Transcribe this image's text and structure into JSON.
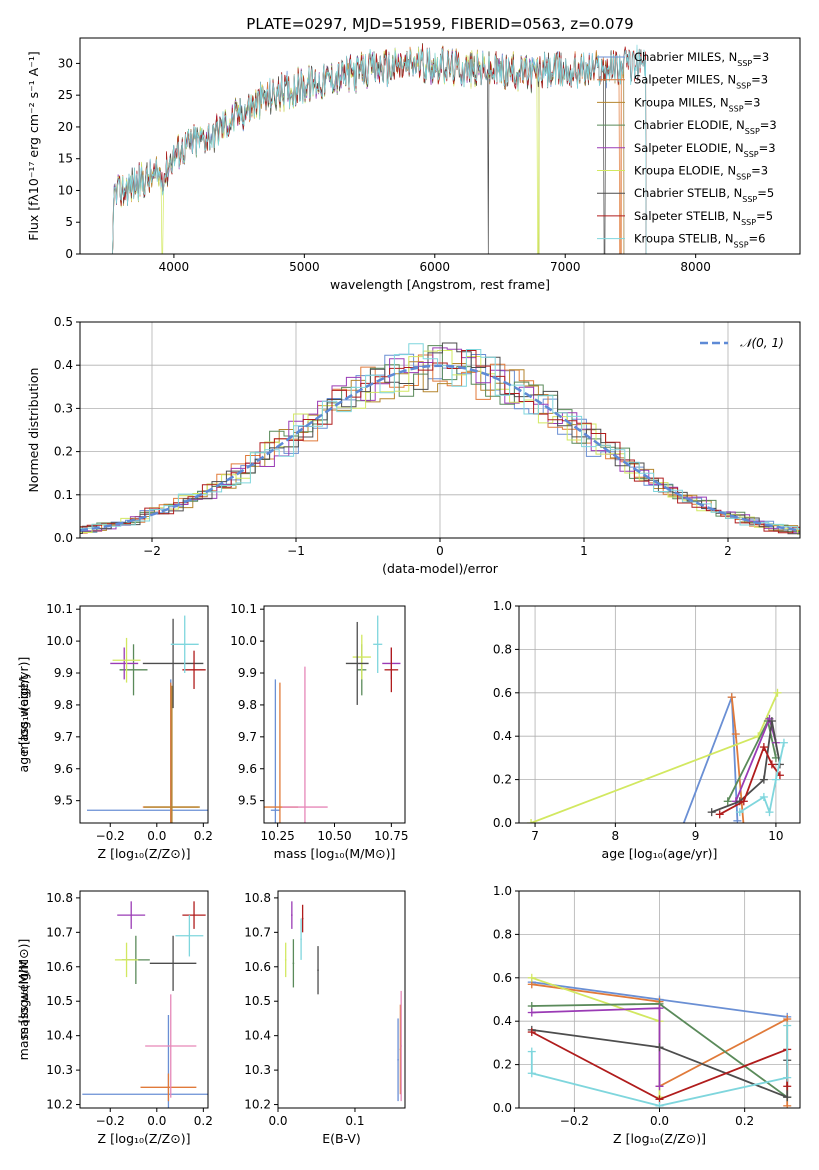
{
  "title": "PLATE=0297, MJD=51959, FIBERID=0563, z=0.079",
  "colors": {
    "chabrier_miles": "#6a8fd4",
    "salpeter_miles": "#e07a3a",
    "kroupa_miles": "#b5862f",
    "chabrier_elodie": "#5a8a5a",
    "salpeter_elodie": "#9a3bb5",
    "kroupa_elodie": "#d2e860",
    "chabrier_stelib": "#4d4d4d",
    "salpeter_stelib": "#b01c1c",
    "kroupa_stelib": "#7fd6dd",
    "pink": "#e687b8",
    "gauss": "#5e8ad6"
  },
  "chart_data": [
    {
      "id": "spectrum",
      "type": "line",
      "xlabel": "wavelength [Angstrom, rest frame]",
      "ylabel": "Flux [fλ10⁻¹⁷ erg cm⁻² s⁻¹ A⁻¹]",
      "xlim": [
        3280,
        8800
      ],
      "ylim": [
        0,
        34
      ],
      "xticks": [
        "4000",
        "5000",
        "6000",
        "7000",
        "8000"
      ],
      "yticks": [
        "0",
        "5",
        "10",
        "15",
        "20",
        "25",
        "30"
      ],
      "xtick_values": [
        4000,
        5000,
        6000,
        7000,
        8000
      ],
      "ytick_values": [
        0,
        5,
        10,
        15,
        20,
        25,
        30
      ],
      "grid": false,
      "legend_position": "right",
      "continuum": [
        [
          3530,
          9
        ],
        [
          3650,
          10.5
        ],
        [
          3800,
          12
        ],
        [
          3930,
          12.5
        ],
        [
          3990,
          15.5
        ],
        [
          4100,
          17
        ],
        [
          4300,
          19
        ],
        [
          4500,
          22
        ],
        [
          4700,
          24.5
        ],
        [
          4900,
          26
        ],
        [
          5100,
          27
        ],
        [
          5300,
          28
        ],
        [
          5500,
          29
        ],
        [
          5700,
          29.5
        ],
        [
          5900,
          30
        ],
        [
          6100,
          29.5
        ],
        [
          6300,
          29
        ],
        [
          6500,
          28.8
        ],
        [
          6700,
          28.5
        ],
        [
          6900,
          28.8
        ],
        [
          7100,
          29
        ],
        [
          7300,
          29.3
        ],
        [
          7600,
          30
        ]
      ],
      "series": [
        {
          "name": "Chabrier MILES, N_SSP=3",
          "color_key": "chabrier_miles",
          "x_range": [
            3530,
            7450
          ],
          "glitches": [],
          "seed": 1
        },
        {
          "name": "Salpeter MILES, N_SSP=3",
          "color_key": "salpeter_miles",
          "x_range": [
            3530,
            7430
          ],
          "glitches": [
            7420
          ],
          "seed": 2
        },
        {
          "name": "Kroupa MILES, N_SSP=3",
          "color_key": "kroupa_miles",
          "x_range": [
            3530,
            7450
          ],
          "glitches": [],
          "seed": 3
        },
        {
          "name": "Chabrier ELODIE, N_SSP=3",
          "color_key": "chabrier_elodie",
          "x_range": [
            3530,
            6800
          ],
          "glitches": [],
          "seed": 4
        },
        {
          "name": "Salpeter ELODIE, N_SSP=3",
          "color_key": "salpeter_elodie",
          "x_range": [
            3530,
            6800
          ],
          "glitches": [],
          "seed": 5
        },
        {
          "name": "Kroupa ELODIE, N_SSP=3",
          "color_key": "kroupa_elodie",
          "x_range": [
            3530,
            6800
          ],
          "glitches": [
            3910,
            6790
          ],
          "seed": 6
        },
        {
          "name": "Chabrier STELIB, N_SSP=5",
          "color_key": "chabrier_stelib",
          "x_range": [
            3530,
            7620
          ],
          "glitches": [
            6410,
            7300
          ],
          "seed": 7
        },
        {
          "name": "Salpeter STELIB, N_SSP=5",
          "color_key": "salpeter_stelib",
          "x_range": [
            3530,
            7620
          ],
          "glitches": [],
          "seed": 8
        },
        {
          "name": "Kroupa STELIB, N_SSP=6",
          "color_key": "kroupa_stelib",
          "x_range": [
            3530,
            7620
          ],
          "glitches": [],
          "seed": 9
        }
      ]
    },
    {
      "id": "residuals",
      "type": "line",
      "xlabel": "(data-model)/error",
      "ylabel": "Normed distribution",
      "xlim": [
        -2.5,
        2.5
      ],
      "ylim": [
        0,
        0.5
      ],
      "xticks": [
        "−2",
        "−1",
        "0",
        "1",
        "2"
      ],
      "yticks": [
        "0.0",
        "0.1",
        "0.2",
        "0.3",
        "0.4",
        "0.5"
      ],
      "xtick_values": [
        -2,
        -1,
        0,
        1,
        2
      ],
      "ytick_values": [
        0,
        0.1,
        0.2,
        0.3,
        0.4,
        0.5
      ],
      "grid": true,
      "legend_position": "top-right",
      "legend_label": "𝒩(0, 1)",
      "bin_width": 0.1,
      "histogram_color_keys": [
        "chabrier_miles",
        "salpeter_miles",
        "kroupa_miles",
        "chabrier_elodie",
        "salpeter_elodie",
        "kroupa_elodie",
        "chabrier_stelib",
        "salpeter_stelib",
        "kroupa_stelib"
      ]
    },
    {
      "id": "age_vs_z",
      "type": "scatter",
      "xlabel": "Z [log₁₀(Z/Z⊙)]",
      "ylabel": "age  [log₁₀(age/yr)]",
      "xlim": [
        -0.33,
        0.22
      ],
      "ylim": [
        9.43,
        10.11
      ],
      "xticks": [
        "−0.2",
        "0.0",
        "0.2"
      ],
      "yticks": [
        "9.5",
        "9.6",
        "9.7",
        "9.8",
        "9.9",
        "10.0",
        "10.1"
      ],
      "xtick_values": [
        -0.2,
        0,
        0.2
      ],
      "ytick_values": [
        9.5,
        9.6,
        9.7,
        9.8,
        9.9,
        10.0,
        10.1
      ],
      "grid": false,
      "points": [
        {
          "color_key": "chabrier_miles",
          "x": 0.06,
          "y": 9.47,
          "xerr": 0.36,
          "yerr": 0.41
        },
        {
          "color_key": "salpeter_miles",
          "x": 0.06,
          "y": 9.48,
          "xerr": 0.12,
          "yerr": 0.39
        },
        {
          "color_key": "kroupa_miles",
          "x": 0.065,
          "y": 9.48,
          "xerr": 0.12,
          "yerr": 0.38
        },
        {
          "color_key": "chabrier_elodie",
          "x": -0.1,
          "y": 9.91,
          "xerr": 0.06,
          "yerr": 0.08
        },
        {
          "color_key": "salpeter_elodie",
          "x": -0.14,
          "y": 9.93,
          "xerr": 0.06,
          "yerr": 0.05
        },
        {
          "color_key": "kroupa_elodie",
          "x": -0.13,
          "y": 9.94,
          "xerr": 0.06,
          "yerr": 0.07
        },
        {
          "color_key": "chabrier_stelib",
          "x": 0.07,
          "y": 9.93,
          "xerr": 0.13,
          "yerr": 0.14
        },
        {
          "color_key": "salpeter_stelib",
          "x": 0.16,
          "y": 9.91,
          "xerr": 0.05,
          "yerr": 0.06
        },
        {
          "color_key": "kroupa_stelib",
          "x": 0.12,
          "y": 9.99,
          "xerr": 0.06,
          "yerr": 0.09
        }
      ]
    },
    {
      "id": "age_vs_mass",
      "type": "scatter",
      "xlabel": "mass [log₁₀(M/M⊙)]",
      "ylabel": "",
      "xlim": [
        10.19,
        10.81
      ],
      "ylim": [
        9.43,
        10.11
      ],
      "xticks": [
        "10.25",
        "10.50",
        "10.75"
      ],
      "yticks": [
        "9.5",
        "9.6",
        "9.7",
        "9.8",
        "9.9",
        "10.0",
        "10.1"
      ],
      "xtick_values": [
        10.25,
        10.5,
        10.75
      ],
      "ytick_values": [
        9.5,
        9.6,
        9.7,
        9.8,
        9.9,
        10.0,
        10.1
      ],
      "grid": false,
      "points": [
        {
          "color_key": "chabrier_miles",
          "x": 10.24,
          "y": 9.47,
          "xerr": 0.02,
          "yerr": 0.41
        },
        {
          "color_key": "salpeter_miles",
          "x": 10.26,
          "y": 9.48,
          "xerr": 0.08,
          "yerr": 0.39
        },
        {
          "color_key": "pink",
          "x": 10.37,
          "y": 9.48,
          "xerr": 0.1,
          "yerr": 0.44
        },
        {
          "color_key": "chabrier_elodie",
          "x": 10.62,
          "y": 9.91,
          "xerr": 0.02,
          "yerr": 0.08
        },
        {
          "color_key": "salpeter_elodie",
          "x": 10.75,
          "y": 9.93,
          "xerr": 0.04,
          "yerr": 0.05
        },
        {
          "color_key": "kroupa_elodie",
          "x": 10.62,
          "y": 9.95,
          "xerr": 0.04,
          "yerr": 0.07
        },
        {
          "color_key": "chabrier_stelib",
          "x": 10.6,
          "y": 9.93,
          "xerr": 0.05,
          "yerr": 0.13
        },
        {
          "color_key": "salpeter_stelib",
          "x": 10.75,
          "y": 9.91,
          "xerr": 0.03,
          "yerr": 0.07
        },
        {
          "color_key": "kroupa_stelib",
          "x": 10.69,
          "y": 9.99,
          "xerr": 0.02,
          "yerr": 0.09
        }
      ]
    },
    {
      "id": "mass_weight_vs_age",
      "type": "line",
      "xlabel": "age  [log₁₀(age/yr)]",
      "ylabel": "mass weight",
      "xlim": [
        6.8,
        10.3
      ],
      "ylim": [
        0,
        1
      ],
      "xticks": [
        "7",
        "8",
        "9",
        "10"
      ],
      "yticks": [
        "0.0",
        "0.2",
        "0.4",
        "0.6",
        "0.8",
        "1.0"
      ],
      "xtick_values": [
        7,
        8,
        9,
        10
      ],
      "ytick_values": [
        0,
        0.2,
        0.4,
        0.6,
        0.8,
        1.0
      ],
      "grid": true,
      "series": [
        {
          "color_key": "chabrier_miles",
          "x": [
            8.8,
            9.45,
            9.52
          ],
          "y": [
            -0.05,
            0.58,
            0.01
          ]
        },
        {
          "color_key": "salpeter_miles",
          "x": [
            9.45,
            9.5,
            9.6
          ],
          "y": [
            0.58,
            0.41,
            -0.02
          ]
        },
        {
          "color_key": "kroupa_elodie",
          "x": [
            6.95,
            9.78,
            10.02
          ],
          "y": [
            0.0,
            0.4,
            0.6
          ]
        },
        {
          "color_key": "chabrier_elodie",
          "x": [
            9.4,
            9.9,
            10.0
          ],
          "y": [
            0.1,
            0.47,
            0.3
          ]
        },
        {
          "color_key": "salpeter_elodie",
          "x": [
            9.5,
            9.92,
            10.0
          ],
          "y": [
            0.1,
            0.48,
            0.37
          ]
        },
        {
          "color_key": "chabrier_stelib",
          "x": [
            9.2,
            9.55,
            9.85,
            9.95,
            10.05
          ],
          "y": [
            0.05,
            0.1,
            0.2,
            0.47,
            0.27
          ]
        },
        {
          "color_key": "salpeter_stelib",
          "x": [
            9.3,
            9.6,
            9.85,
            9.95,
            10.05
          ],
          "y": [
            0.04,
            0.1,
            0.35,
            0.27,
            0.22
          ]
        },
        {
          "color_key": "kroupa_stelib",
          "x": [
            9.55,
            9.85,
            9.92,
            10.0,
            10.1
          ],
          "y": [
            0.05,
            0.12,
            0.05,
            0.2,
            0.37
          ]
        }
      ]
    },
    {
      "id": "mass_vs_z",
      "type": "scatter",
      "xlabel": "Z [log₁₀(Z/Z⊙)]",
      "ylabel": "mass [log₁₀(M/M⊙)]",
      "xlim": [
        -0.33,
        0.22
      ],
      "ylim": [
        10.19,
        10.82
      ],
      "xticks": [
        "−0.2",
        "0.0",
        "0.2"
      ],
      "yticks": [
        "10.2",
        "10.3",
        "10.4",
        "10.5",
        "10.6",
        "10.7",
        "10.8"
      ],
      "xtick_values": [
        -0.2,
        0,
        0.2
      ],
      "ytick_values": [
        10.2,
        10.3,
        10.4,
        10.5,
        10.6,
        10.7,
        10.8
      ],
      "grid": false,
      "points": [
        {
          "color_key": "chabrier_miles",
          "x": 0.05,
          "y": 10.23,
          "xerr": 0.37,
          "yerr": 0.23
        },
        {
          "color_key": "salpeter_miles",
          "x": 0.05,
          "y": 10.25,
          "xerr": 0.12,
          "yerr": 0.04
        },
        {
          "color_key": "pink",
          "x": 0.06,
          "y": 10.37,
          "xerr": 0.11,
          "yerr": 0.15
        },
        {
          "color_key": "chabrier_elodie",
          "x": -0.09,
          "y": 10.62,
          "xerr": 0.06,
          "yerr": 0.07
        },
        {
          "color_key": "kroupa_elodie",
          "x": -0.13,
          "y": 10.62,
          "xerr": 0.05,
          "yerr": 0.05
        },
        {
          "color_key": "salpeter_elodie",
          "x": -0.11,
          "y": 10.75,
          "xerr": 0.06,
          "yerr": 0.04
        },
        {
          "color_key": "chabrier_stelib",
          "x": 0.07,
          "y": 10.61,
          "xerr": 0.1,
          "yerr": 0.08
        },
        {
          "color_key": "salpeter_stelib",
          "x": 0.16,
          "y": 10.75,
          "xerr": 0.05,
          "yerr": 0.04
        },
        {
          "color_key": "kroupa_stelib",
          "x": 0.14,
          "y": 10.69,
          "xerr": 0.06,
          "yerr": 0.06
        }
      ]
    },
    {
      "id": "mass_vs_ebv",
      "type": "scatter",
      "xlabel": "E(B-V)",
      "ylabel": "",
      "xlim": [
        0.0,
        0.165
      ],
      "ylim": [
        10.19,
        10.82
      ],
      "xticks": [
        "0.0",
        "0.1"
      ],
      "yticks": [
        "10.2",
        "10.3",
        "10.4",
        "10.5",
        "10.6",
        "10.7",
        "10.8"
      ],
      "xtick_values": [
        0,
        0.1
      ],
      "ytick_values": [
        10.2,
        10.3,
        10.4,
        10.5,
        10.6,
        10.7,
        10.8
      ],
      "grid": false,
      "points": [
        {
          "color_key": "chabrier_miles",
          "x": 0.156,
          "y": 10.33,
          "xerr": 0.001,
          "yerr": 0.12
        },
        {
          "color_key": "salpeter_miles",
          "x": 0.159,
          "y": 10.36,
          "xerr": 0.001,
          "yerr": 0.13
        },
        {
          "color_key": "pink",
          "x": 0.16,
          "y": 10.37,
          "xerr": 0.001,
          "yerr": 0.16
        },
        {
          "color_key": "kroupa_elodie",
          "x": 0.01,
          "y": 10.62,
          "xerr": 0.001,
          "yerr": 0.05
        },
        {
          "color_key": "chabrier_elodie",
          "x": 0.02,
          "y": 10.61,
          "xerr": 0.001,
          "yerr": 0.07
        },
        {
          "color_key": "salpeter_elodie",
          "x": 0.018,
          "y": 10.75,
          "xerr": 0.001,
          "yerr": 0.04
        },
        {
          "color_key": "salpeter_stelib",
          "x": 0.032,
          "y": 10.74,
          "xerr": 0.001,
          "yerr": 0.04
        },
        {
          "color_key": "kroupa_stelib",
          "x": 0.03,
          "y": 10.68,
          "xerr": 0.001,
          "yerr": 0.06
        },
        {
          "color_key": "chabrier_stelib",
          "x": 0.052,
          "y": 10.59,
          "xerr": 0.001,
          "yerr": 0.07
        }
      ]
    },
    {
      "id": "mass_weight_vs_z",
      "type": "line",
      "xlabel": "Z [log₁₀(Z/Z⊙)]",
      "ylabel": "mass weight",
      "xlim": [
        -0.33,
        0.33
      ],
      "ylim": [
        0,
        1
      ],
      "xticks": [
        "−0.2",
        "0.0",
        "0.2"
      ],
      "yticks": [
        "0.0",
        "0.2",
        "0.4",
        "0.6",
        "0.8",
        "1.0"
      ],
      "xtick_values": [
        -0.2,
        0,
        0.2
      ],
      "ytick_values": [
        0,
        0.2,
        0.4,
        0.6,
        0.8,
        1.0
      ],
      "grid": true,
      "series": [
        {
          "color_key": "chabrier_miles",
          "x": [
            -0.3,
            0.0,
            0.3
          ],
          "y": [
            0.58,
            0.5,
            0.42
          ]
        },
        {
          "color_key": "salpeter_miles",
          "x": [
            -0.3,
            0.0,
            0.0,
            0.3,
            0.3
          ],
          "y": [
            0.57,
            0.49,
            0.1,
            0.41,
            0.01
          ]
        },
        {
          "color_key": "kroupa_elodie",
          "x": [
            -0.3,
            0.0,
            0.0
          ],
          "y": [
            0.6,
            0.4,
            0.05
          ]
        },
        {
          "color_key": "chabrier_elodie",
          "x": [
            -0.3,
            0.0,
            0.3
          ],
          "y": [
            0.47,
            0.48,
            0.05
          ]
        },
        {
          "color_key": "salpeter_elodie",
          "x": [
            -0.3,
            0.0,
            0.0
          ],
          "y": [
            0.44,
            0.46,
            0.1
          ]
        },
        {
          "color_key": "chabrier_stelib",
          "x": [
            -0.3,
            0.0,
            0.3,
            0.3
          ],
          "y": [
            0.36,
            0.28,
            0.05,
            0.22
          ]
        },
        {
          "color_key": "salpeter_stelib",
          "x": [
            -0.3,
            0.0,
            0.3,
            0.3
          ],
          "y": [
            0.35,
            0.04,
            0.27,
            0.1
          ]
        },
        {
          "color_key": "kroupa_stelib",
          "x": [
            -0.3,
            -0.3,
            0.0,
            0.3,
            0.3
          ],
          "y": [
            0.26,
            0.16,
            0.01,
            0.14,
            0.38
          ]
        }
      ]
    }
  ]
}
